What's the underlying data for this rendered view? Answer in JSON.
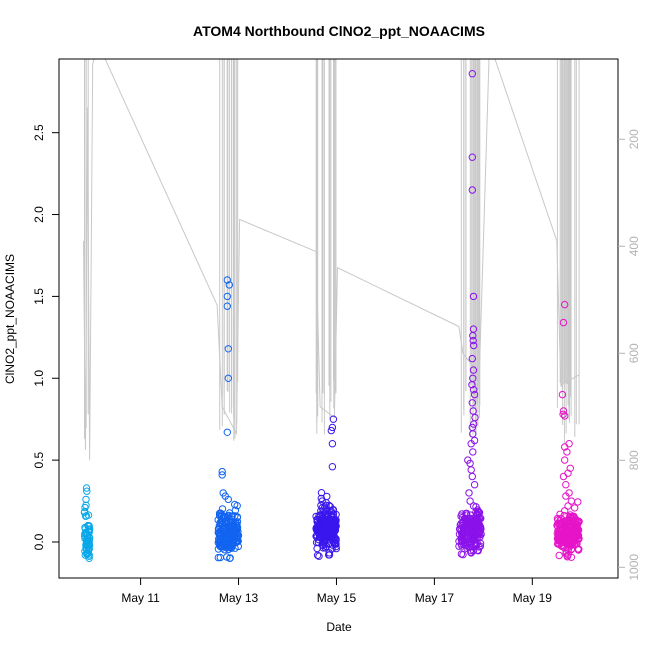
{
  "chart_data": {
    "type": "scatter",
    "title": "ATOM4 Northbound ClNO2_ppt_NOAACIMS",
    "xlabel": "Date",
    "ylabel": "ClNO2_ppt_NOAACIMS",
    "xlim": [
      "2018-05-09T08:00",
      "2018-05-20T18:00"
    ],
    "ylim": [
      -0.22,
      2.95
    ],
    "x_ticks": [
      {
        "value": "2018-05-11",
        "label": "May 11"
      },
      {
        "value": "2018-05-13",
        "label": "May 13"
      },
      {
        "value": "2018-05-15",
        "label": "May 15"
      },
      {
        "value": "2018-05-17",
        "label": "May 17"
      },
      {
        "value": "2018-05-19",
        "label": "May 19"
      }
    ],
    "y_ticks": [
      0.0,
      0.5,
      1.0,
      1.5,
      2.0,
      2.5
    ],
    "y_tick_labels": [
      "0.0",
      "0.5",
      "1.0",
      "1.5",
      "2.0",
      "2.5"
    ],
    "right_axis": {
      "note": "secondary reversed axis (altitude-like), grey",
      "ylim_top": 50,
      "ylim_bottom": 1020,
      "ticks": [
        200,
        400,
        600,
        800,
        1000
      ],
      "color": "#b3b3b3"
    },
    "grid": false,
    "legend": "none",
    "marker": "open-circle",
    "series": [
      {
        "color": "#0aa8e8",
        "clusters": [
          {
            "x_start": "2018-05-09T20:30",
            "x_end": "2018-05-09T23:00",
            "count": 55,
            "base_mean": 0.02,
            "base_sd": 0.09,
            "extras": [
              [
                0.33,
                0.4
              ],
              [
                0.31,
                0.45
              ],
              [
                0.26,
                0.3
              ],
              [
                0.21,
                0.1
              ],
              [
                0.18,
                0.0
              ],
              [
                0.16,
                0.35
              ]
            ]
          }
        ]
      },
      {
        "color": "#1264f0",
        "clusters": [
          {
            "x_start": "2018-05-12T14:00",
            "x_end": "2018-05-12T23:59",
            "count": 230,
            "base_mean": 0.05,
            "base_sd": 0.06,
            "extras": [
              [
                1.6,
                0.45
              ],
              [
                1.57,
                0.55
              ],
              [
                1.5,
                0.45
              ],
              [
                1.44,
                0.45
              ],
              [
                1.18,
                0.5
              ],
              [
                1.0,
                0.5
              ],
              [
                0.67,
                0.45
              ],
              [
                0.43,
                0.2
              ],
              [
                0.41,
                0.2
              ],
              [
                0.3,
                0.25
              ],
              [
                0.28,
                0.35
              ],
              [
                0.26,
                0.5
              ]
            ]
          }
        ]
      },
      {
        "color": "#3a17ee",
        "clusters": [
          {
            "x_start": "2018-05-14T14:00",
            "x_end": "2018-05-14T23:59",
            "count": 230,
            "base_mean": 0.08,
            "base_sd": 0.07,
            "extras": [
              [
                0.75,
                0.85
              ],
              [
                0.7,
                0.8
              ],
              [
                0.68,
                0.75
              ],
              [
                0.6,
                0.8
              ],
              [
                0.46,
                0.8
              ],
              [
                0.25,
                0.3
              ],
              [
                0.24,
                0.5
              ]
            ]
          }
        ]
      },
      {
        "color": "#8a12ea",
        "clusters": [
          {
            "x_start": "2018-05-17T12:00",
            "x_end": "2018-05-17T23:00",
            "count": 190,
            "base_mean": 0.07,
            "base_sd": 0.06,
            "extras": [
              [
                2.86,
                0.6
              ],
              [
                2.35,
                0.6
              ],
              [
                2.15,
                0.6
              ],
              [
                1.5,
                0.65
              ],
              [
                1.3,
                0.65
              ],
              [
                1.26,
                0.62
              ],
              [
                1.23,
                0.64
              ],
              [
                1.2,
                0.66
              ],
              [
                1.12,
                0.6
              ],
              [
                1.05,
                0.65
              ],
              [
                1.0,
                0.62
              ],
              [
                0.96,
                0.58
              ],
              [
                0.93,
                0.66
              ],
              [
                0.9,
                0.7
              ],
              [
                0.85,
                0.6
              ],
              [
                0.8,
                0.64
              ],
              [
                0.76,
                0.72
              ],
              [
                0.72,
                0.66
              ],
              [
                0.7,
                0.6
              ],
              [
                0.66,
                0.62
              ],
              [
                0.62,
                0.7
              ],
              [
                0.6,
                0.55
              ],
              [
                0.55,
                0.62
              ],
              [
                0.5,
                0.4
              ],
              [
                0.48,
                0.5
              ],
              [
                0.44,
                0.55
              ],
              [
                0.4,
                0.6
              ],
              [
                0.35,
                0.7
              ],
              [
                0.3,
                0.45
              ],
              [
                0.25,
                0.5
              ],
              [
                0.22,
                0.65
              ]
            ]
          }
        ]
      },
      {
        "color": "#e614c8",
        "clusters": [
          {
            "x_start": "2018-05-19T12:00",
            "x_end": "2018-05-19T23:00",
            "count": 230,
            "base_mean": 0.05,
            "base_sd": 0.06,
            "extras": [
              [
                1.45,
                0.35
              ],
              [
                1.34,
                0.3
              ],
              [
                0.9,
                0.25
              ],
              [
                0.8,
                0.3
              ],
              [
                0.78,
                0.28
              ],
              [
                0.77,
                0.35
              ],
              [
                0.6,
                0.55
              ],
              [
                0.58,
                0.35
              ],
              [
                0.55,
                0.45
              ],
              [
                0.5,
                0.35
              ],
              [
                0.45,
                0.6
              ],
              [
                0.42,
                0.5
              ],
              [
                0.4,
                0.3
              ],
              [
                0.35,
                0.4
              ],
              [
                0.3,
                0.55
              ],
              [
                0.28,
                0.4
              ],
              [
                0.25,
                0.65
              ],
              [
                0.22,
                0.5
              ]
            ]
          }
        ]
      }
    ],
    "background_line": {
      "color": "#c8c8c8",
      "points": [
        [
          "2018-05-09T20:00",
          390
        ],
        [
          "2018-05-09T21:00",
          780
        ],
        [
          "2018-05-09T22:00",
          140
        ],
        [
          "2018-05-09T23:00",
          800
        ],
        [
          "2018-05-10T00:30",
          60
        ],
        [
          "2018-05-10T03:00",
          20
        ],
        [
          "2018-05-12T13:30",
          510
        ],
        [
          "2018-05-12T16:00",
          700
        ],
        [
          "2018-05-12T23:00",
          750
        ],
        [
          "2018-05-13T00:30",
          350
        ],
        [
          "2018-05-14T14:00",
          410
        ],
        [
          "2018-05-14T16:00",
          700
        ],
        [
          "2018-05-14T23:00",
          720
        ],
        [
          "2018-05-15T00:30",
          440
        ],
        [
          "2018-05-17T12:00",
          550
        ],
        [
          "2018-05-17T14:00",
          600
        ],
        [
          "2018-05-17T22:00",
          640
        ],
        [
          "2018-05-18T03:00",
          20
        ],
        [
          "2018-05-19T12:00",
          390
        ],
        [
          "2018-05-19T14:00",
          660
        ],
        [
          "2018-05-19T23:00",
          640
        ]
      ]
    }
  }
}
